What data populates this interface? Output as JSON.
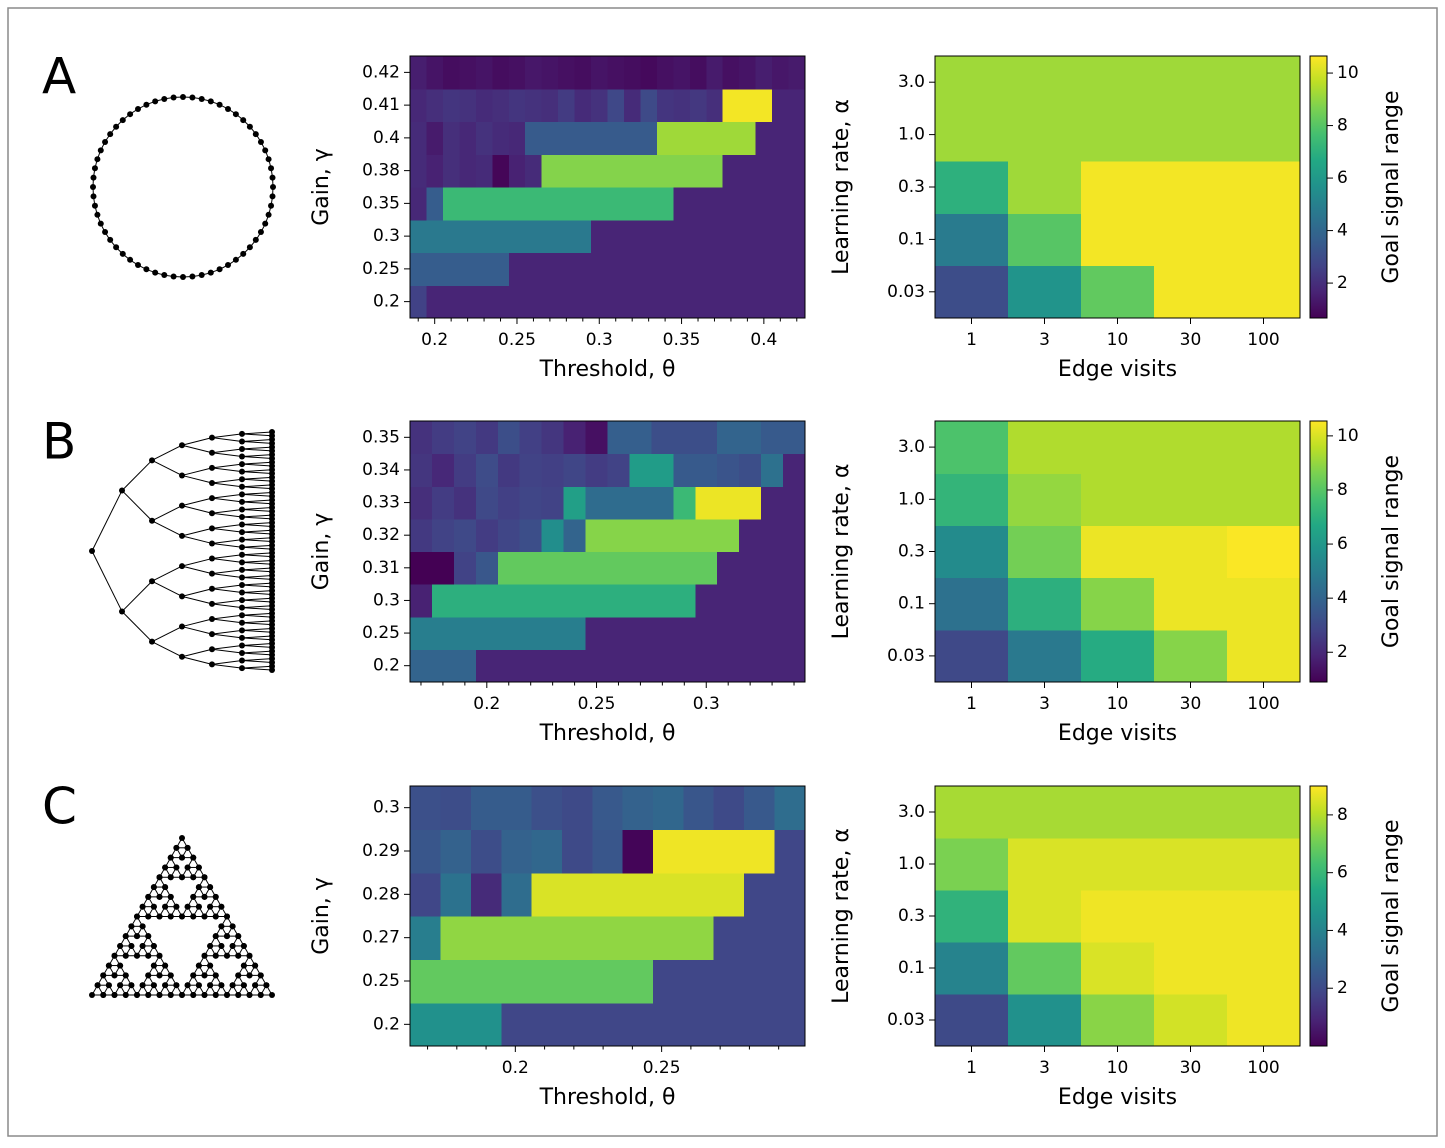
{
  "chart_data": [
    {
      "type": "heatmap",
      "panel": "A",
      "xlabel": "Threshold, θ",
      "ylabel": "Gain, γ",
      "colormap": "viridis",
      "clim": [
        0.67,
        10.65
      ],
      "xlim": [
        0.185,
        0.425
      ],
      "xticks": [
        0.2,
        0.25,
        0.3,
        0.35,
        0.4
      ],
      "xminorticks": [
        0.19,
        0.21,
        0.22,
        0.23,
        0.24,
        0.26,
        0.27,
        0.28,
        0.29,
        0.31,
        0.32,
        0.33,
        0.34,
        0.36,
        0.37,
        0.38,
        0.39,
        0.41,
        0.42
      ],
      "xbins": [
        0.185,
        0.195,
        0.205,
        0.215,
        0.225,
        0.235,
        0.245,
        0.255,
        0.265,
        0.275,
        0.285,
        0.295,
        0.305,
        0.315,
        0.325,
        0.335,
        0.345,
        0.355,
        0.365,
        0.375,
        0.385,
        0.395,
        0.405,
        0.415,
        0.425
      ],
      "y_categories": [
        "0.2",
        "0.25",
        "0.3",
        "0.35",
        "0.38",
        "0.4",
        "0.41",
        "0.42"
      ],
      "values": [
        [
          2.6,
          1.7,
          1.7,
          1.7,
          1.7,
          1.7,
          1.7,
          1.7,
          1.7,
          1.7,
          1.7,
          1.7,
          1.7,
          1.7,
          1.7,
          1.7,
          1.7,
          1.7,
          1.7,
          1.7,
          1.7,
          1.7,
          1.7,
          1.7
        ],
        [
          3.6,
          3.6,
          3.6,
          3.6,
          3.6,
          3.6,
          1.7,
          1.7,
          1.7,
          1.7,
          1.7,
          1.7,
          1.7,
          1.7,
          1.7,
          1.7,
          1.7,
          1.7,
          1.7,
          1.7,
          1.7,
          1.7,
          1.7,
          1.7
        ],
        [
          4.7,
          4.7,
          4.7,
          4.7,
          4.7,
          4.7,
          4.7,
          4.7,
          4.7,
          4.7,
          4.7,
          1.7,
          1.7,
          1.7,
          1.7,
          1.7,
          1.7,
          1.7,
          1.7,
          1.7,
          1.7,
          1.7,
          1.7,
          1.7
        ],
        [
          1.8,
          3.6,
          7.4,
          7.4,
          7.4,
          7.4,
          7.4,
          7.4,
          7.4,
          7.4,
          7.4,
          7.4,
          7.4,
          7.4,
          7.4,
          7.4,
          1.7,
          1.7,
          1.7,
          1.7,
          1.7,
          1.7,
          1.7,
          1.7
        ],
        [
          1.9,
          1.6,
          2.0,
          1.8,
          1.9,
          0.8,
          1.6,
          1.9,
          8.8,
          8.8,
          8.8,
          8.8,
          8.8,
          8.8,
          8.8,
          8.8,
          8.8,
          8.8,
          8.8,
          1.7,
          1.7,
          1.7,
          1.7,
          1.7
        ],
        [
          1.9,
          1.4,
          2.0,
          1.8,
          2.1,
          1.9,
          1.8,
          3.5,
          3.5,
          3.5,
          3.5,
          3.5,
          3.5,
          3.5,
          3.5,
          9.2,
          9.2,
          9.2,
          9.2,
          9.2,
          9.2,
          1.7,
          1.7,
          1.7
        ],
        [
          1.8,
          2.0,
          2.2,
          2.1,
          1.9,
          2.0,
          2.2,
          2.1,
          2.0,
          2.4,
          1.9,
          2.1,
          2.8,
          1.9,
          2.9,
          2.2,
          2.1,
          2.3,
          2.0,
          10.5,
          10.5,
          10.5,
          1.7,
          1.7
        ],
        [
          1.5,
          1.2,
          1.0,
          1.1,
          1.2,
          1.0,
          1.1,
          1.3,
          1.2,
          1.1,
          1.0,
          1.2,
          1.1,
          1.0,
          0.9,
          1.1,
          1.2,
          1.0,
          1.4,
          1.1,
          1.2,
          1.5,
          1.3,
          1.4
        ]
      ]
    },
    {
      "type": "heatmap",
      "xlabel": "Edge visits",
      "ylabel": "Learning rate, α",
      "colormap": "viridis",
      "clim": [
        0.67,
        10.65
      ],
      "categories": [
        "1",
        "3",
        "10",
        "30",
        "100"
      ],
      "y_categories": [
        "0.03",
        "0.1",
        "0.3",
        "1.0",
        "3.0"
      ],
      "values": [
        [
          3.0,
          5.8,
          8.2,
          10.5,
          10.5
        ],
        [
          4.8,
          8.0,
          10.5,
          10.5,
          10.5
        ],
        [
          7.0,
          9.2,
          10.5,
          10.5,
          10.5
        ],
        [
          9.2,
          9.2,
          9.2,
          9.2,
          9.2
        ],
        [
          9.2,
          9.2,
          9.2,
          9.2,
          9.2
        ]
      ],
      "colorbar": {
        "label": "Goal signal range",
        "ticks": [
          2,
          4,
          6,
          8,
          10
        ]
      }
    },
    {
      "type": "heatmap",
      "panel": "B",
      "xlabel": "Threshold, θ",
      "ylabel": "Gain, γ",
      "colormap": "viridis",
      "clim": [
        0.9,
        10.55
      ],
      "xlim": [
        0.165,
        0.345
      ],
      "xticks": [
        0.2,
        0.25,
        0.3
      ],
      "xminorticks": [
        0.17,
        0.18,
        0.19,
        0.21,
        0.22,
        0.23,
        0.24,
        0.26,
        0.27,
        0.28,
        0.29,
        0.31,
        0.32,
        0.33,
        0.34
      ],
      "xbins": [
        0.165,
        0.175,
        0.185,
        0.195,
        0.205,
        0.215,
        0.225,
        0.235,
        0.245,
        0.255,
        0.265,
        0.275,
        0.285,
        0.295,
        0.305,
        0.315,
        0.325,
        0.335,
        0.345
      ],
      "y_categories": [
        "0.2",
        "0.25",
        "0.3",
        "0.31",
        "0.32",
        "0.33",
        "0.34",
        "0.35"
      ],
      "values": [
        [
          4.0,
          4.0,
          4.0,
          1.9,
          1.9,
          1.9,
          1.9,
          1.9,
          1.9,
          1.9,
          1.9,
          1.9,
          1.9,
          1.9,
          1.9,
          1.9,
          1.9,
          1.9
        ],
        [
          5.0,
          5.0,
          5.0,
          5.0,
          5.0,
          5.0,
          5.0,
          5.0,
          1.9,
          1.9,
          1.9,
          1.9,
          1.9,
          1.9,
          1.9,
          1.9,
          1.9,
          1.9
        ],
        [
          1.8,
          7.0,
          7.0,
          7.0,
          7.0,
          7.0,
          7.0,
          7.0,
          7.0,
          7.0,
          7.0,
          7.0,
          7.0,
          1.9,
          1.9,
          1.9,
          1.9,
          1.9
        ],
        [
          0.9,
          0.9,
          2.8,
          3.5,
          8.2,
          8.2,
          8.2,
          8.2,
          8.2,
          8.2,
          8.2,
          8.2,
          8.2,
          8.2,
          1.9,
          1.9,
          1.9,
          1.9
        ],
        [
          2.5,
          2.8,
          3.0,
          2.6,
          2.9,
          3.2,
          5.6,
          4.0,
          8.8,
          8.8,
          8.8,
          8.8,
          8.8,
          8.8,
          8.8,
          1.9,
          1.9,
          1.9
        ],
        [
          2.2,
          2.6,
          2.3,
          3.0,
          2.7,
          2.9,
          2.8,
          6.3,
          4.3,
          4.3,
          4.3,
          4.3,
          7.4,
          10.3,
          10.3,
          10.3,
          1.9,
          1.9
        ],
        [
          2.4,
          2.0,
          2.6,
          3.1,
          2.5,
          2.8,
          2.7,
          2.9,
          2.6,
          2.8,
          6.2,
          6.2,
          3.6,
          3.6,
          3.4,
          3.2,
          4.5,
          1.9
        ],
        [
          2.3,
          2.6,
          2.8,
          2.5,
          3.2,
          2.7,
          2.4,
          1.8,
          1.3,
          3.8,
          3.8,
          3.2,
          3.2,
          3.2,
          4.0,
          4.0,
          3.6,
          3.6
        ]
      ]
    },
    {
      "type": "heatmap",
      "xlabel": "Edge visits",
      "ylabel": "Learning rate, α",
      "colormap": "viridis",
      "clim": [
        0.9,
        10.55
      ],
      "categories": [
        "1",
        "3",
        "10",
        "30",
        "100"
      ],
      "y_categories": [
        "0.03",
        "0.1",
        "0.3",
        "1.0",
        "3.0"
      ],
      "values": [
        [
          3.0,
          4.8,
          6.8,
          8.8,
          10.3
        ],
        [
          4.5,
          7.0,
          8.8,
          10.3,
          10.3
        ],
        [
          5.5,
          8.5,
          10.3,
          10.3,
          10.5
        ],
        [
          7.2,
          9.0,
          9.4,
          9.4,
          9.4
        ],
        [
          7.8,
          9.4,
          9.4,
          9.4,
          9.4
        ]
      ],
      "colorbar": {
        "label": "Goal signal range",
        "ticks": [
          2,
          4,
          6,
          8,
          10
        ]
      }
    },
    {
      "type": "heatmap",
      "panel": "C",
      "xlabel": "Threshold, θ",
      "ylabel": "Gain, γ",
      "colormap": "viridis",
      "clim": [
        0,
        9
      ],
      "xlim": [
        0.164,
        0.299
      ],
      "xticks": [
        0.2,
        0.25
      ],
      "xminorticks": [
        0.17,
        0.18,
        0.19,
        0.21,
        0.22,
        0.23,
        0.24,
        0.26,
        0.27,
        0.28,
        0.29
      ],
      "xbins": [
        0.164,
        0.1744,
        0.1848,
        0.1952,
        0.2055,
        0.2159,
        0.2263,
        0.2367,
        0.2471,
        0.2575,
        0.2678,
        0.2782,
        0.2886,
        0.299
      ],
      "y_categories": [
        "0.2",
        "0.25",
        "0.27",
        "0.28",
        "0.29",
        "0.3"
      ],
      "values": [
        [
          4.5,
          4.5,
          4.5,
          1.9,
          1.9,
          1.9,
          1.9,
          1.9,
          1.9,
          1.9,
          1.9,
          1.9,
          1.9
        ],
        [
          6.8,
          6.8,
          6.8,
          6.8,
          6.8,
          6.8,
          6.8,
          6.8,
          1.9,
          1.9,
          1.9,
          1.9,
          1.9
        ],
        [
          3.8,
          7.5,
          7.5,
          7.5,
          7.5,
          7.5,
          7.5,
          7.5,
          7.5,
          7.5,
          1.9,
          1.9,
          1.9
        ],
        [
          1.9,
          3.4,
          1.1,
          3.2,
          8.5,
          8.5,
          8.5,
          8.5,
          8.5,
          8.5,
          8.5,
          1.9,
          1.9
        ],
        [
          2.4,
          2.8,
          2.1,
          2.8,
          3.0,
          2.0,
          2.4,
          0.1,
          8.8,
          8.8,
          8.8,
          8.8,
          1.9
        ],
        [
          2.2,
          2.1,
          2.6,
          2.6,
          2.2,
          2.0,
          2.5,
          2.8,
          3.0,
          2.4,
          2.0,
          2.5,
          3.2
        ]
      ]
    },
    {
      "type": "heatmap",
      "xlabel": "Edge visits",
      "ylabel": "Learning rate, α",
      "colormap": "viridis",
      "clim": [
        0,
        9
      ],
      "categories": [
        "1",
        "3",
        "10",
        "30",
        "100"
      ],
      "y_categories": [
        "0.03",
        "0.1",
        "0.3",
        "1.0",
        "3.0"
      ],
      "values": [
        [
          2.0,
          4.5,
          7.4,
          8.4,
          8.8
        ],
        [
          4.0,
          6.8,
          8.5,
          8.8,
          8.8
        ],
        [
          5.8,
          8.5,
          8.8,
          8.8,
          8.8
        ],
        [
          7.2,
          8.5,
          8.5,
          8.5,
          8.5
        ],
        [
          7.8,
          7.8,
          7.8,
          7.8,
          7.8
        ]
      ],
      "colorbar": {
        "label": "Goal signal range",
        "ticks": [
          2,
          4,
          6,
          8
        ]
      }
    }
  ]
}
